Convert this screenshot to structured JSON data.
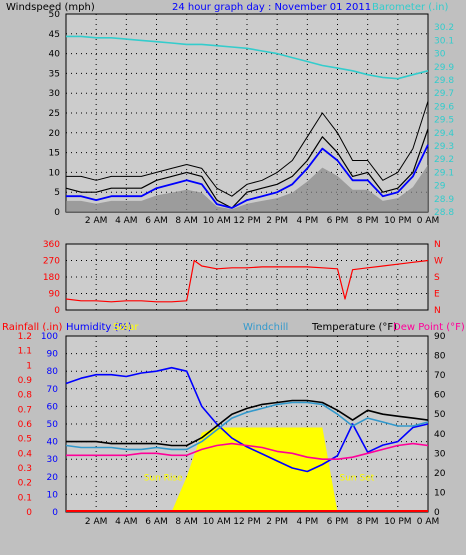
{
  "colors": {
    "background": "#c0c0c0",
    "plot_bg": "#cccccc",
    "axis_text": "#000000",
    "windspeed": "#000000",
    "gust": "#000000",
    "avg_wind": "#0000ff",
    "wind_gray": "#888888",
    "barometer": "#33cccc",
    "wind_dir": "#ff0000",
    "rainfall": "#ff0000",
    "humidity": "#0000ff",
    "solar": "#ffff00",
    "windchill": "#3399cc",
    "temperature": "#000000",
    "dewpoint": "#ff0099"
  },
  "chart_data": [
    {
      "id": "wind_baro",
      "type": "line",
      "title": "24 hour graph day : November 01 2011",
      "ylabel_left": "Windspeed (mph)",
      "ylabel_right": "Barometer (.in)",
      "ylim_left": [
        0,
        50
      ],
      "ylim_right": [
        28.8,
        30.3
      ],
      "yticks_left": [
        "0",
        "5",
        "10",
        "15",
        "20",
        "25",
        "30",
        "35",
        "40",
        "45",
        "50"
      ],
      "yticks_right": [
        "28.8",
        "28.9",
        "29",
        "29.1",
        "29.2",
        "29.3",
        "29.4",
        "29.5",
        "29.6",
        "29.7",
        "29.8",
        "29.9",
        "30",
        "30.1",
        "30.2"
      ],
      "x_ticks": [
        "2 AM",
        "4 AM",
        "6 AM",
        "8 AM",
        "10 AM",
        "12 PM",
        "2 PM",
        "4 PM",
        "6 PM",
        "8 PM",
        "10 PM",
        "0 AM"
      ],
      "x_hours": [
        0,
        1,
        2,
        3,
        4,
        5,
        6,
        7,
        8,
        9,
        10,
        11,
        12,
        13,
        14,
        15,
        16,
        17,
        18,
        19,
        20,
        21,
        22,
        23,
        24
      ],
      "series": [
        {
          "name": "Windspeed",
          "values": [
            6,
            5,
            5,
            6,
            6,
            6,
            8,
            9,
            10,
            9,
            3,
            1,
            5,
            6,
            7,
            9,
            13,
            19,
            15,
            9,
            10,
            5,
            6,
            10,
            21
          ]
        },
        {
          "name": "Gust",
          "values": [
            9,
            9,
            8,
            9,
            9,
            9,
            10,
            11,
            12,
            11,
            6,
            4,
            7,
            8,
            10,
            13,
            19,
            25,
            20,
            13,
            13,
            8,
            10,
            16,
            28
          ]
        },
        {
          "name": "Wind Average",
          "values": [
            4,
            4,
            3,
            4,
            4,
            4,
            6,
            7,
            8,
            7,
            2,
            1,
            3,
            4,
            5,
            7,
            11,
            16,
            13,
            8,
            8,
            4,
            5,
            9,
            17
          ]
        },
        {
          "name": "Barometer",
          "values": [
            30.13,
            30.13,
            30.12,
            30.12,
            30.11,
            30.1,
            30.09,
            30.08,
            30.07,
            30.07,
            30.06,
            30.05,
            30.04,
            30.02,
            30.0,
            29.97,
            29.94,
            29.91,
            29.89,
            29.87,
            29.84,
            29.82,
            29.81,
            29.84,
            29.87
          ]
        }
      ]
    },
    {
      "id": "wind_dir",
      "type": "line",
      "ylim": [
        0,
        360
      ],
      "yticks_left": [
        "0",
        "90",
        "180",
        "270",
        "360"
      ],
      "yticks_right": [
        "N",
        "E",
        "S",
        "W",
        "N"
      ],
      "x_hours": [
        0,
        1,
        2,
        3,
        4,
        5,
        6,
        7,
        8,
        8.5,
        9,
        10,
        11,
        12,
        13,
        14,
        15,
        16,
        17,
        18,
        18.5,
        19,
        20,
        21,
        22,
        23,
        24
      ],
      "series": [
        {
          "name": "Wind Direction",
          "values": [
            60,
            50,
            50,
            45,
            50,
            50,
            45,
            45,
            50,
            270,
            240,
            225,
            230,
            230,
            235,
            235,
            235,
            235,
            230,
            225,
            60,
            220,
            230,
            240,
            250,
            260,
            270
          ]
        }
      ]
    },
    {
      "id": "temp_hum",
      "type": "line",
      "legend": [
        "Rainfall (.in)",
        "Humidity (%)",
        "Solar",
        "Windchill",
        "Temperature (°F)",
        "Dew Point (°F)"
      ],
      "yticks_rain": [
        "0",
        "0.1",
        "0.2",
        "0.3",
        "0.4",
        "0.5",
        "0.6",
        "0.7",
        "0.8",
        "0.9",
        "1",
        "1.1",
        "1.2"
      ],
      "yticks_humidity": [
        "0",
        "10",
        "20",
        "30",
        "40",
        "50",
        "60",
        "70",
        "80",
        "90",
        "100"
      ],
      "yticks_temp": [
        "0",
        "10",
        "20",
        "30",
        "40",
        "50",
        "60",
        "70",
        "80",
        "90"
      ],
      "ylim_humidity": [
        0,
        100
      ],
      "ylim_temp": [
        0,
        90
      ],
      "x_hours": [
        0,
        1,
        2,
        3,
        4,
        5,
        6,
        7,
        8,
        9,
        10,
        11,
        12,
        13,
        14,
        15,
        16,
        17,
        18,
        19,
        20,
        21,
        22,
        23,
        24
      ],
      "series": [
        {
          "name": "Humidity",
          "values": [
            73,
            76,
            78,
            78,
            77,
            79,
            80,
            82,
            80,
            60,
            50,
            42,
            37,
            33,
            29,
            25,
            23,
            27,
            32,
            50,
            34,
            38,
            40,
            48,
            50
          ]
        },
        {
          "name": "Temperature",
          "values": [
            36,
            36,
            36,
            35,
            35,
            35,
            35,
            34,
            34,
            38,
            44,
            50,
            53,
            55,
            56,
            57,
            57,
            56,
            52,
            47,
            52,
            50,
            49,
            48,
            47
          ]
        },
        {
          "name": "Windchill",
          "values": [
            34,
            33,
            33,
            33,
            32,
            32,
            33,
            32,
            32,
            36,
            42,
            48,
            51,
            53,
            55,
            56,
            56,
            55,
            50,
            44,
            48,
            46,
            44,
            44,
            46
          ]
        },
        {
          "name": "Dew Point",
          "values": [
            29,
            29,
            29,
            29,
            29,
            30,
            30,
            29,
            29,
            32,
            34,
            35,
            34,
            33,
            31,
            30,
            28,
            27,
            27,
            28,
            30,
            32,
            34,
            35,
            34
          ]
        },
        {
          "name": "Solar",
          "values": [
            0,
            0,
            0,
            0,
            0,
            0,
            0,
            0,
            20,
            45,
            48,
            48,
            48,
            48,
            48,
            48,
            48,
            48,
            0,
            0,
            0,
            0,
            0,
            0,
            0
          ]
        },
        {
          "name": "Rainfall",
          "values": [
            0,
            0,
            0,
            0,
            0,
            0,
            0,
            0,
            0,
            0,
            0,
            0,
            0,
            0,
            0,
            0,
            0,
            0,
            0,
            0,
            0,
            0,
            0,
            0,
            0
          ]
        }
      ],
      "annotations": [
        "Sun Rise",
        "Sun Set"
      ]
    }
  ]
}
